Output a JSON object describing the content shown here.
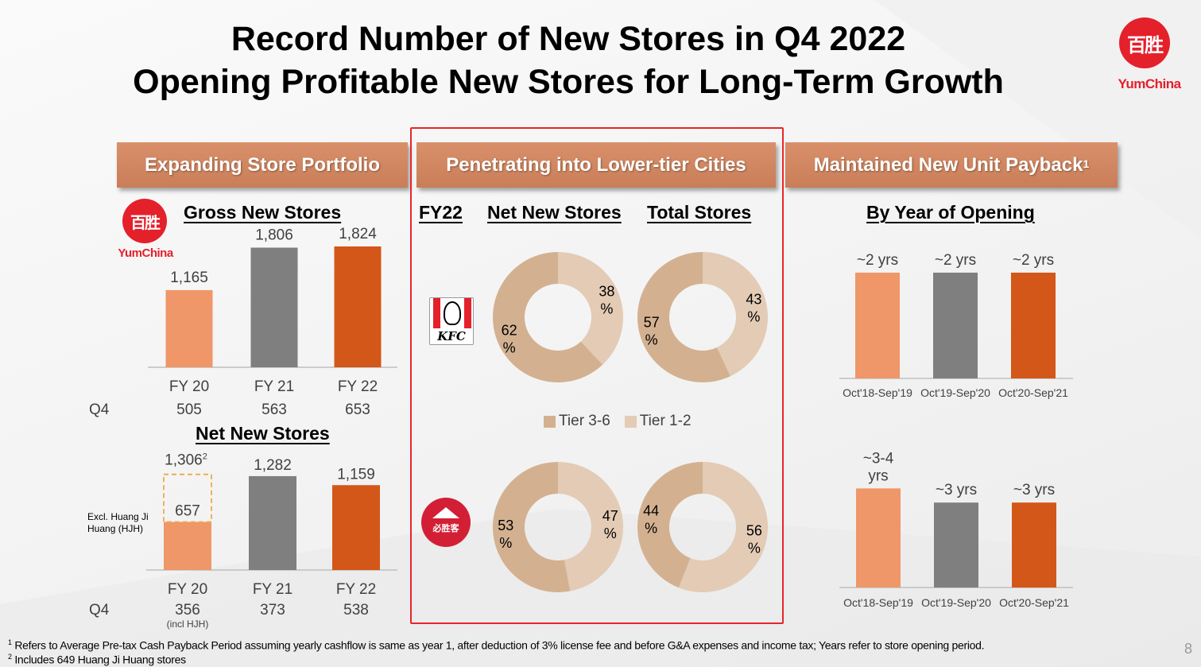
{
  "header": {
    "title_line1": "Record Number of New Stores in Q4 2022",
    "title_line2": "Opening Profitable New Stores for Long-Term Growth",
    "logo_chars": "百胜",
    "logo_text": "YumChina"
  },
  "banners": {
    "left": "Expanding Store Portfolio",
    "middle": "Penetrating into Lower-tier Cities",
    "right": "Maintained New Unit Payback",
    "right_sup": "1"
  },
  "colors": {
    "fy20": "#ef9769",
    "fy21": "#7f7f7f",
    "fy22": "#d35719",
    "tier36": "#d3b190",
    "tier12": "#e3cbb5",
    "frame": "#e8262a",
    "brand_red": "#e4202b"
  },
  "left_panel": {
    "logo_chars": "百胜",
    "logo_text": "YumChina",
    "gross_title": "Gross New Stores",
    "net_title": "Net New Stores",
    "q4_label": "Q4",
    "gross_q4": [
      "505",
      "563",
      "653"
    ],
    "net_q4": [
      "356",
      "373",
      "538"
    ],
    "net_q4_note": "(incl HJH)",
    "excl_note_line1": "Excl. Huang Ji",
    "excl_note_line2": "Huang (HJH)",
    "net_fy20_total_label": "1,306",
    "net_fy20_total_sup": "2"
  },
  "middle_panel": {
    "fy_label": "FY22",
    "col1_title": "Net New Stores",
    "col2_title": "Total Stores",
    "kfc_text": "KFC",
    "ph_text": "必胜客",
    "legend": [
      {
        "label": "Tier 3-6",
        "key": "tier36"
      },
      {
        "label": "Tier 1-2",
        "key": "tier12"
      }
    ]
  },
  "right_panel": {
    "title": "By Year of Opening"
  },
  "footnotes": {
    "f1_sup": "1",
    "f1": "Refers to Average Pre-tax Cash Payback Period assuming yearly cashflow is same as year 1, after deduction of 3% license fee and before G&A expenses and income tax; Years refer to store opening period.",
    "f2_sup": "2",
    "f2": "Includes 649 Huang Ji Huang stores"
  },
  "page_number": "8",
  "chart_data": [
    {
      "id": "gross_new_stores",
      "type": "bar",
      "title": "Gross New Stores",
      "categories": [
        "FY 20",
        "FY 21",
        "FY 22"
      ],
      "values": [
        1165,
        1806,
        1824
      ],
      "labels": [
        "1,165",
        "1,806",
        "1,824"
      ],
      "ylim": [
        0,
        2100
      ],
      "xlabel": "",
      "ylabel": "",
      "grid": false
    },
    {
      "id": "net_new_stores",
      "type": "bar",
      "title": "Net New Stores",
      "categories": [
        "FY 20",
        "FY 21",
        "FY 22"
      ],
      "values": [
        657,
        1282,
        1159
      ],
      "labels": [
        "657",
        "1,282",
        "1,159"
      ],
      "dashed_total": {
        "category": "FY 20",
        "value": 1306,
        "label": "1,306",
        "note": "Includes 649 Huang Ji Huang stores"
      },
      "ylim": [
        0,
        1520
      ],
      "xlabel": "",
      "ylabel": "",
      "grid": false
    },
    {
      "id": "kfc_net_new",
      "type": "pie",
      "title": "KFC FY22 Net New Stores",
      "donut": true,
      "slices": [
        {
          "label": "Tier 1-2",
          "value": 38
        },
        {
          "label": "Tier 3-6",
          "value": 62
        }
      ]
    },
    {
      "id": "kfc_total",
      "type": "pie",
      "title": "KFC FY22 Total Stores",
      "donut": true,
      "slices": [
        {
          "label": "Tier 1-2",
          "value": 43
        },
        {
          "label": "Tier 3-6",
          "value": 57
        }
      ]
    },
    {
      "id": "ph_net_new",
      "type": "pie",
      "title": "Pizza Hut FY22 Net New Stores",
      "donut": true,
      "slices": [
        {
          "label": "Tier 1-2",
          "value": 47
        },
        {
          "label": "Tier 3-6",
          "value": 53
        }
      ]
    },
    {
      "id": "ph_total",
      "type": "pie",
      "title": "Pizza Hut FY22 Total Stores",
      "donut": true,
      "slices": [
        {
          "label": "Tier 1-2",
          "value": 56
        },
        {
          "label": "Tier 3-6",
          "value": 44
        }
      ]
    },
    {
      "id": "payback_kfc",
      "type": "bar",
      "title": "KFC Payback by Year of Opening",
      "categories": [
        "Oct'18-Sep'19",
        "Oct'19-Sep'20",
        "Oct'20-Sep'21"
      ],
      "values": [
        2,
        2,
        2
      ],
      "labels": [
        "~2 yrs",
        "~2 yrs",
        "~2 yrs"
      ],
      "ylim": [
        0,
        2.3
      ],
      "unit": "years"
    },
    {
      "id": "payback_ph",
      "type": "bar",
      "title": "Pizza Hut Payback by Year of Opening",
      "categories": [
        "Oct'18-Sep'19",
        "Oct'19-Sep'20",
        "Oct'20-Sep'21"
      ],
      "values": [
        3.5,
        3,
        3
      ],
      "labels": [
        "~3-4 yrs",
        "~3 yrs",
        "~3 yrs"
      ],
      "ylim": [
        0,
        4.1
      ],
      "unit": "years"
    }
  ]
}
